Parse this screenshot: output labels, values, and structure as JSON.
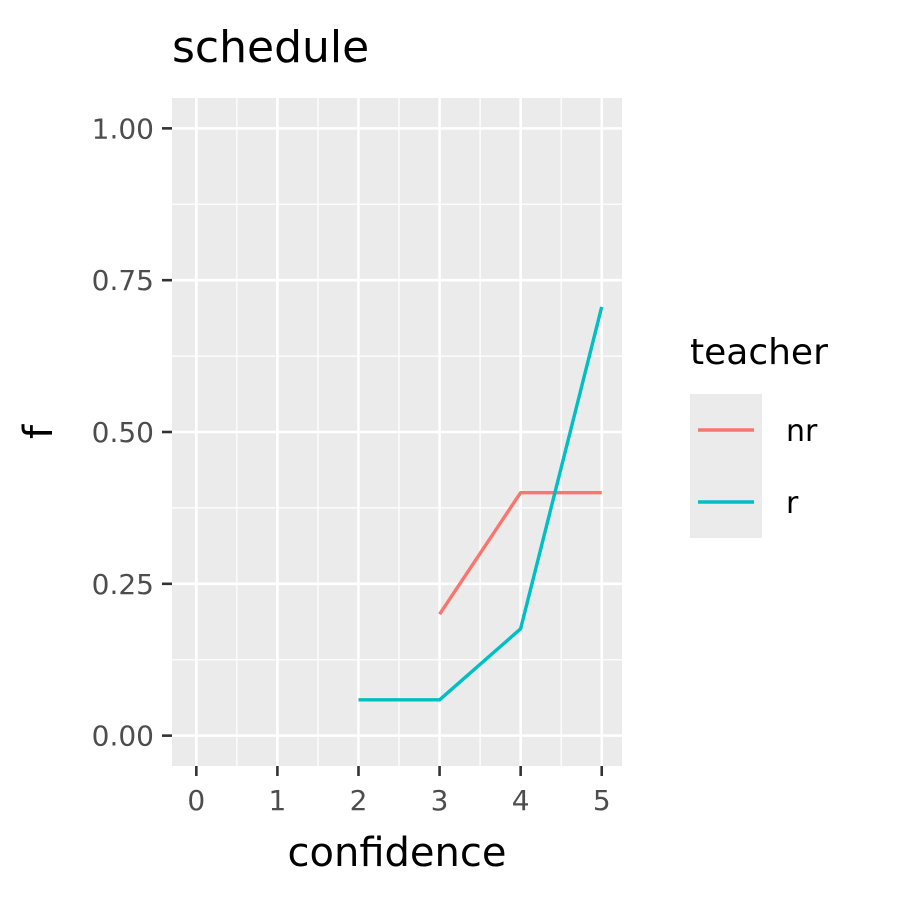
{
  "chart_data": {
    "type": "line",
    "title": "schedule",
    "xlabel": "confidence",
    "ylabel": "f",
    "xlim": [
      -0.3,
      5.25
    ],
    "ylim": [
      -0.05,
      1.05
    ],
    "x_ticks": [
      0,
      1,
      2,
      3,
      4,
      5
    ],
    "x_tick_labels": [
      "0",
      "1",
      "2",
      "3",
      "4",
      "5"
    ],
    "y_ticks": [
      0,
      0.25,
      0.5,
      0.75,
      1.0
    ],
    "y_tick_labels": [
      "0.00",
      "0.25",
      "0.50",
      "0.75",
      "1.00"
    ],
    "grid": true,
    "legend": {
      "title": "teacher",
      "placement": "right"
    },
    "series": [
      {
        "name": "nr",
        "color": "#F8766D",
        "x": [
          3,
          4,
          5
        ],
        "y": [
          0.2,
          0.4,
          0.4
        ]
      },
      {
        "name": "r",
        "color": "#00BFC4",
        "x": [
          2,
          3,
          4,
          5
        ],
        "y": [
          0.059,
          0.059,
          0.176,
          0.706
        ]
      }
    ]
  }
}
